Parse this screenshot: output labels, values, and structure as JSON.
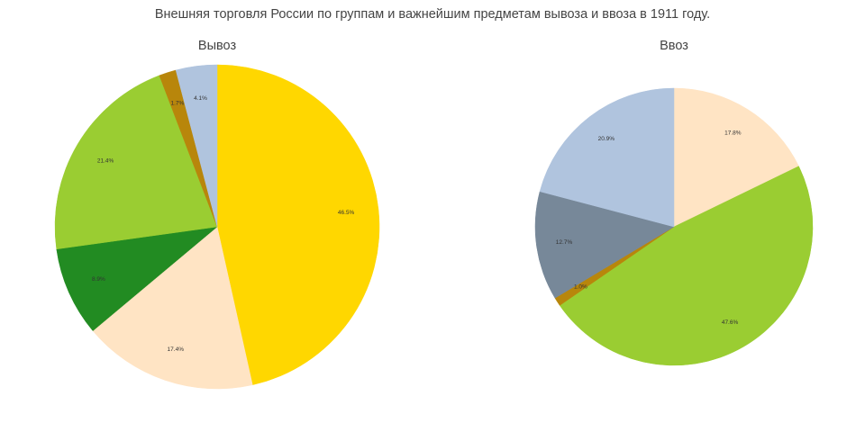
{
  "title": "Внешняя торговля России по группам и важнейшим предметам вывоза и ввоза в 1911 году.",
  "chart_data": [
    {
      "type": "pie",
      "title": "Вывоз",
      "start_angle_deg": 90,
      "direction": "clockwise",
      "slices": [
        {
          "value": 46.5,
          "label": "46.5%",
          "color": "#FFD700"
        },
        {
          "value": 17.4,
          "label": "17.4%",
          "color": "#FFE4C4"
        },
        {
          "value": 8.9,
          "label": "8.9%",
          "color": "#228B22"
        },
        {
          "value": 21.4,
          "label": "21.4%",
          "color": "#9ACD32"
        },
        {
          "value": 1.7,
          "label": "1.7%",
          "color": "#B8860B"
        },
        {
          "value": 4.1,
          "label": "4.1%",
          "color": "#B0C4DE"
        }
      ]
    },
    {
      "type": "pie",
      "title": "Ввоз",
      "start_angle_deg": 90,
      "direction": "clockwise",
      "slices": [
        {
          "value": 17.8,
          "label": "17.8%",
          "color": "#FFE4C4"
        },
        {
          "value": 47.6,
          "label": "47.6%",
          "color": "#9ACD32"
        },
        {
          "value": 1.0,
          "label": "1.0%",
          "color": "#B8860B"
        },
        {
          "value": 12.7,
          "label": "12.7%",
          "color": "#778899"
        },
        {
          "value": 20.9,
          "label": "20.9%",
          "color": "#B0C4DE"
        }
      ]
    }
  ]
}
